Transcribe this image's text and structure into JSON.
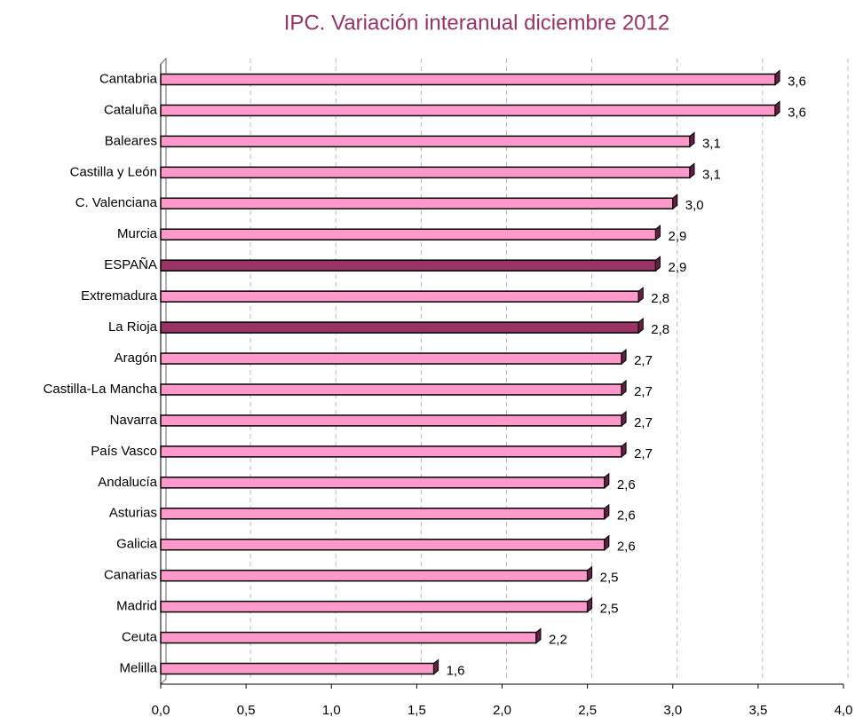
{
  "chart_data": {
    "type": "barh",
    "title": "IPC. Variación interanual diciembre 2012",
    "categories": [
      "Cantabria",
      "Cataluña",
      "Baleares",
      "Castilla y León",
      "C. Valenciana",
      "Murcia",
      "ESPAÑA",
      "Extremadura",
      "La Rioja",
      "Aragón",
      "Castilla-La Mancha",
      "Navarra",
      "País Vasco",
      "Andalucía",
      "Asturias",
      "Galicia",
      "Canarias",
      "Madrid",
      "Ceuta",
      "Melilla"
    ],
    "values": [
      3.6,
      3.6,
      3.1,
      3.1,
      3.0,
      2.9,
      2.9,
      2.8,
      2.8,
      2.7,
      2.7,
      2.7,
      2.7,
      2.6,
      2.6,
      2.6,
      2.5,
      2.5,
      2.2,
      1.6
    ],
    "value_labels": [
      "3,6",
      "3,6",
      "3,1",
      "3,1",
      "3,0",
      "2,9",
      "2,9",
      "2,8",
      "2,8",
      "2,7",
      "2,7",
      "2,7",
      "2,7",
      "2,6",
      "2,6",
      "2,6",
      "2,5",
      "2,5",
      "2,2",
      "1,6"
    ],
    "colors": [
      "#ff99cc",
      "#ff99cc",
      "#ff99cc",
      "#ff99cc",
      "#ff99cc",
      "#ff99cc",
      "#993366",
      "#ff99cc",
      "#993366",
      "#ff99cc",
      "#ff99cc",
      "#ff99cc",
      "#ff99cc",
      "#ff99cc",
      "#ff99cc",
      "#ff99cc",
      "#ff99cc",
      "#ff99cc",
      "#ff99cc",
      "#ff99cc"
    ],
    "xlim": [
      0,
      4
    ],
    "xticks": [
      {
        "value": 0,
        "label": "0,0"
      },
      {
        "value": 0.5,
        "label": "0,5"
      },
      {
        "value": 1,
        "label": "1,0"
      },
      {
        "value": 1.5,
        "label": "1,5"
      },
      {
        "value": 2,
        "label": "2,0"
      },
      {
        "value": 2.5,
        "label": "2,5"
      },
      {
        "value": 3,
        "label": "3,0"
      },
      {
        "value": 3.5,
        "label": "3,5"
      },
      {
        "value": 4,
        "label": "4,0"
      }
    ],
    "grid": true
  }
}
